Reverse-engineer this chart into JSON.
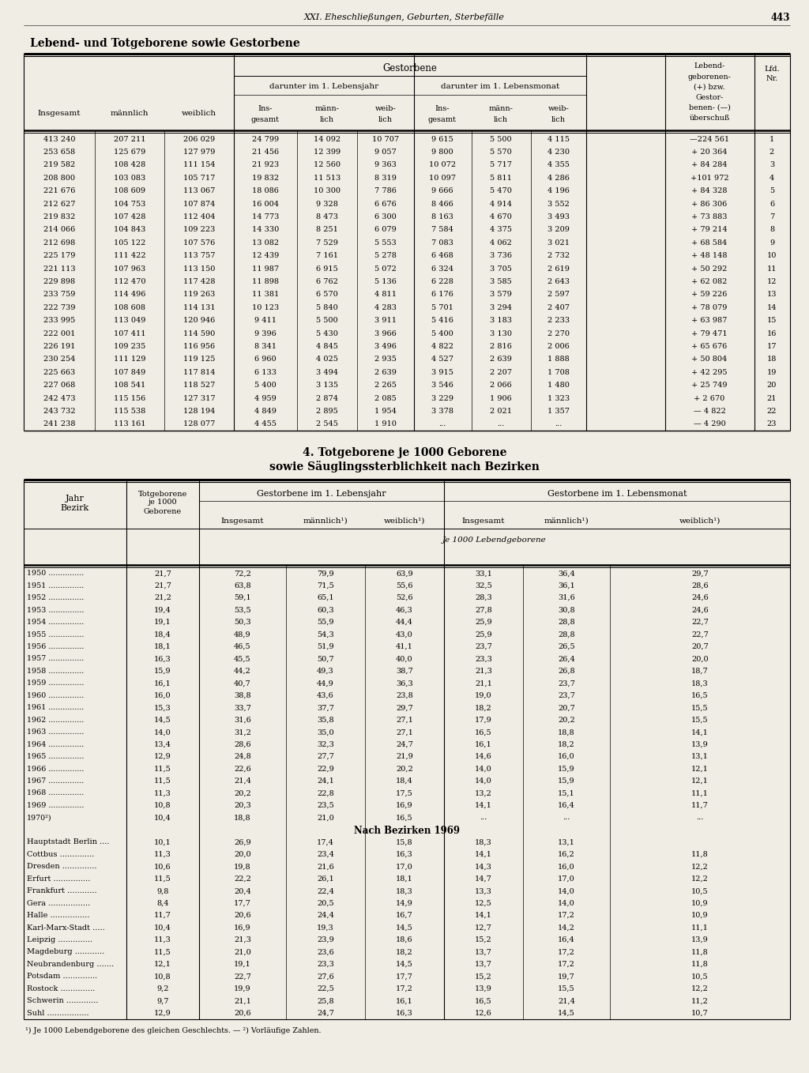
{
  "page_header": "XXI. Eheschließungen, Geburten, Sterbefälle",
  "page_number": "443",
  "section1_title": "Lebend- und Totgeborene sowie Gestorbene",
  "section2_title_1": "4. Totgeborene je 1000 Geborene",
  "section2_title_2": "sowie Säuglingssterblichkeit nach Bezirken",
  "table1_data": [
    [
      "413 240",
      "207 211",
      "206 029",
      "24 799",
      "14 092",
      "10 707",
      "9 615",
      "5 500",
      "4 115",
      "—224 561",
      "1"
    ],
    [
      "253 658",
      "125 679",
      "127 979",
      "21 456",
      "12 399",
      "9 057",
      "9 800",
      "5 570",
      "4 230",
      "+ 20 364",
      "2"
    ],
    [
      "219 582",
      "108 428",
      "111 154",
      "21 923",
      "12 560",
      "9 363",
      "10 072",
      "5 717",
      "4 355",
      "+ 84 284",
      "3"
    ],
    [
      "208 800",
      "103 083",
      "105 717",
      "19 832",
      "11 513",
      "8 319",
      "10 097",
      "5 811",
      "4 286",
      "+101 972",
      "4"
    ],
    [
      "221 676",
      "108 609",
      "113 067",
      "18 086",
      "10 300",
      "7 786",
      "9 666",
      "5 470",
      "4 196",
      "+ 84 328",
      "5"
    ],
    [
      "212 627",
      "104 753",
      "107 874",
      "16 004",
      "9 328",
      "6 676",
      "8 466",
      "4 914",
      "3 552",
      "+ 86 306",
      "6"
    ],
    [
      "219 832",
      "107 428",
      "112 404",
      "14 773",
      "8 473",
      "6 300",
      "8 163",
      "4 670",
      "3 493",
      "+ 73 883",
      "7"
    ],
    [
      "214 066",
      "104 843",
      "109 223",
      "14 330",
      "8 251",
      "6 079",
      "7 584",
      "4 375",
      "3 209",
      "+ 79 214",
      "8"
    ],
    [
      "212 698",
      "105 122",
      "107 576",
      "13 082",
      "7 529",
      "5 553",
      "7 083",
      "4 062",
      "3 021",
      "+ 68 584",
      "9"
    ],
    [
      "225 179",
      "111 422",
      "113 757",
      "12 439",
      "7 161",
      "5 278",
      "6 468",
      "3 736",
      "2 732",
      "+ 48 148",
      "10"
    ],
    [
      "221 113",
      "107 963",
      "113 150",
      "11 987",
      "6 915",
      "5 072",
      "6 324",
      "3 705",
      "2 619",
      "+ 50 292",
      "11"
    ],
    [
      "229 898",
      "112 470",
      "117 428",
      "11 898",
      "6 762",
      "5 136",
      "6 228",
      "3 585",
      "2 643",
      "+ 62 082",
      "12"
    ],
    [
      "233 759",
      "114 496",
      "119 263",
      "11 381",
      "6 570",
      "4 811",
      "6 176",
      "3 579",
      "2 597",
      "+ 59 226",
      "13"
    ],
    [
      "222 739",
      "108 608",
      "114 131",
      "10 123",
      "5 840",
      "4 283",
      "5 701",
      "3 294",
      "2 407",
      "+ 78 079",
      "14"
    ],
    [
      "233 995",
      "113 049",
      "120 946",
      "9 411",
      "5 500",
      "3 911",
      "5 416",
      "3 183",
      "2 233",
      "+ 63 987",
      "15"
    ],
    [
      "222 001",
      "107 411",
      "114 590",
      "9 396",
      "5 430",
      "3 966",
      "5 400",
      "3 130",
      "2 270",
      "+ 79 471",
      "16"
    ],
    [
      "226 191",
      "109 235",
      "116 956",
      "8 341",
      "4 845",
      "3 496",
      "4 822",
      "2 816",
      "2 006",
      "+ 65 676",
      "17"
    ],
    [
      "230 254",
      "111 129",
      "119 125",
      "6 960",
      "4 025",
      "2 935",
      "4 527",
      "2 639",
      "1 888",
      "+ 50 804",
      "18"
    ],
    [
      "225 663",
      "107 849",
      "117 814",
      "6 133",
      "3 494",
      "2 639",
      "3 915",
      "2 207",
      "1 708",
      "+ 42 295",
      "19"
    ],
    [
      "227 068",
      "108 541",
      "118 527",
      "5 400",
      "3 135",
      "2 265",
      "3 546",
      "2 066",
      "1 480",
      "+ 25 749",
      "20"
    ],
    [
      "242 473",
      "115 156",
      "127 317",
      "4 959",
      "2 874",
      "2 085",
      "3 229",
      "1 906",
      "1 323",
      "+ 2 670",
      "21"
    ],
    [
      "243 732",
      "115 538",
      "128 194",
      "4 849",
      "2 895",
      "1 954",
      "3 378",
      "2 021",
      "1 357",
      "— 4 822",
      "22"
    ],
    [
      "241 238",
      "113 161",
      "128 077",
      "4 455",
      "2 545",
      "1 910",
      "...",
      "...",
      "...",
      "— 4 290",
      "23"
    ]
  ],
  "table2_years": [
    [
      "1950",
      "21,7",
      "72,2",
      "79,9",
      "63,9",
      "33,1",
      "36,4",
      "29,7"
    ],
    [
      "1951",
      "21,7",
      "63,8",
      "71,5",
      "55,6",
      "32,5",
      "36,1",
      "28,6"
    ],
    [
      "1952",
      "21,2",
      "59,1",
      "65,1",
      "52,6",
      "28,3",
      "31,6",
      "24,6"
    ],
    [
      "1953",
      "19,4",
      "53,5",
      "60,3",
      "46,3",
      "27,8",
      "30,8",
      "24,6"
    ],
    [
      "1954",
      "19,1",
      "50,3",
      "55,9",
      "44,4",
      "25,9",
      "28,8",
      "22,7"
    ],
    [
      "1955",
      "18,4",
      "48,9",
      "54,3",
      "43,0",
      "25,9",
      "28,8",
      "22,7"
    ],
    [
      "1956",
      "18,1",
      "46,5",
      "51,9",
      "41,1",
      "23,7",
      "26,5",
      "20,7"
    ],
    [
      "1957",
      "16,3",
      "45,5",
      "50,7",
      "40,0",
      "23,3",
      "26,4",
      "20,0"
    ],
    [
      "1958",
      "15,9",
      "44,2",
      "49,3",
      "38,7",
      "21,3",
      "26,8",
      "18,7"
    ],
    [
      "1959",
      "16,1",
      "40,7",
      "44,9",
      "36,3",
      "21,1",
      "23,7",
      "18,3"
    ],
    [
      "1960",
      "16,0",
      "38,8",
      "43,6",
      "23,8",
      "19,0",
      "23,7",
      "16,5"
    ],
    [
      "1961",
      "15,3",
      "33,7",
      "37,7",
      "29,7",
      "18,2",
      "20,7",
      "15,5"
    ],
    [
      "1962",
      "14,5",
      "31,6",
      "35,8",
      "27,1",
      "17,9",
      "20,2",
      "15,5"
    ],
    [
      "1963",
      "14,0",
      "31,2",
      "35,0",
      "27,1",
      "16,5",
      "18,8",
      "14,1"
    ],
    [
      "1964",
      "13,4",
      "28,6",
      "32,3",
      "24,7",
      "16,1",
      "18,2",
      "13,9"
    ],
    [
      "1965",
      "12,9",
      "24,8",
      "27,7",
      "21,9",
      "14,6",
      "16,0",
      "13,1"
    ],
    [
      "1966",
      "11,5",
      "22,6",
      "22,9",
      "20,2",
      "14,0",
      "15,9",
      "12,1"
    ],
    [
      "1967",
      "11,5",
      "21,4",
      "24,1",
      "18,4",
      "14,0",
      "15,9",
      "12,1"
    ],
    [
      "1968",
      "11,3",
      "20,2",
      "22,8",
      "17,5",
      "13,2",
      "15,1",
      "11,1"
    ],
    [
      "1969",
      "10,8",
      "20,3",
      "23,5",
      "16,9",
      "14,1",
      "16,4",
      "11,7"
    ],
    [
      "1970²)",
      "10,4",
      "18,8",
      "21,0",
      "16,5",
      "...",
      "...",
      "..."
    ]
  ],
  "table2_bezirke": [
    [
      "Hauptstadt Berlin ....",
      "10,1",
      "26,9",
      "17,4",
      "15,8",
      "18,3",
      "13,1"
    ],
    [
      "Cottbus ..............",
      "11,3",
      "20,0",
      "23,4",
      "16,3",
      "14,1",
      "16,2",
      "11,8"
    ],
    [
      "Dresden ..............",
      "10,6",
      "19,8",
      "21,6",
      "17,0",
      "14,3",
      "16,0",
      "12,2"
    ],
    [
      "Erfurt ...............",
      "11,5",
      "22,2",
      "26,1",
      "18,1",
      "14,7",
      "17,0",
      "12,2"
    ],
    [
      "Frankfurt ............",
      "9,8",
      "20,4",
      "22,4",
      "18,3",
      "13,3",
      "14,0",
      "10,5"
    ],
    [
      "Gera .................",
      "8,4",
      "17,7",
      "20,5",
      "14,9",
      "12,5",
      "14,0",
      "10,9"
    ],
    [
      "Halle ................",
      "11,7",
      "20,6",
      "24,4",
      "16,7",
      "14,1",
      "17,2",
      "10,9"
    ],
    [
      "Karl-Marx-Stadt .....",
      "10,4",
      "16,9",
      "19,3",
      "14,5",
      "12,7",
      "14,2",
      "11,1"
    ],
    [
      "Leipzig ..............",
      "11,3",
      "21,3",
      "23,9",
      "18,6",
      "15,2",
      "16,4",
      "13,9"
    ],
    [
      "Magdeburg ............",
      "11,5",
      "21,0",
      "23,6",
      "18,2",
      "13,7",
      "17,2",
      "11,8"
    ],
    [
      "Neubrandenburg .......",
      "12,1",
      "19,1",
      "23,3",
      "14,5",
      "13,7",
      "17,2",
      "11,8"
    ],
    [
      "Potsdam ..............",
      "10,8",
      "22,7",
      "27,6",
      "17,7",
      "15,2",
      "19,7",
      "10,5"
    ],
    [
      "Rostock ..............",
      "9,2",
      "19,9",
      "22,5",
      "17,2",
      "13,9",
      "15,5",
      "12,2"
    ],
    [
      "Schwerin .............",
      "9,7",
      "21,1",
      "25,8",
      "16,1",
      "16,5",
      "21,4",
      "11,2"
    ],
    [
      "Suhl .................",
      "12,9",
      "20,6",
      "24,7",
      "16,3",
      "12,6",
      "14,5",
      "10,7"
    ]
  ],
  "footnote": "¹) Je 1000 Lebendgeborene des gleichen Geschlechts. — ²) Vorläufige Zahlen.",
  "bg_color": "#f0ede4"
}
